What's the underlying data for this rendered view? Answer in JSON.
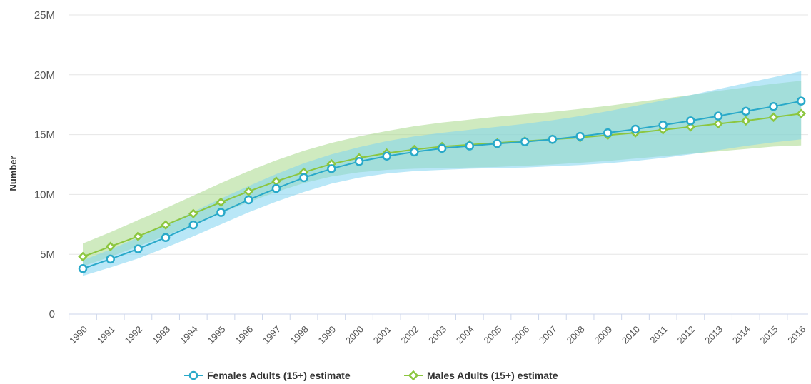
{
  "chart_data": {
    "type": "line",
    "title": "",
    "xlabel": "",
    "ylabel": "Number",
    "ylim": [
      0,
      25000000
    ],
    "y_ticks": [
      0,
      5000000,
      10000000,
      15000000,
      20000000,
      25000000
    ],
    "y_tick_labels": [
      "0",
      "5M",
      "10M",
      "15M",
      "20M",
      "25M"
    ],
    "grid": true,
    "legend_position": "bottom-center",
    "categories": [
      "1990",
      "1991",
      "1992",
      "1993",
      "1994",
      "1995",
      "1996",
      "1997",
      "1998",
      "1999",
      "2000",
      "2001",
      "2002",
      "2003",
      "2004",
      "2005",
      "2006",
      "2007",
      "2008",
      "2009",
      "2010",
      "2011",
      "2012",
      "2013",
      "2014",
      "2015",
      "2016"
    ],
    "series": [
      {
        "name": "Females Adults (15+) estimate",
        "color": "#29a9c9",
        "marker": "circle",
        "band_color": "#7fd3f0",
        "values": [
          3800000,
          4600000,
          5450000,
          6400000,
          7450000,
          8500000,
          9550000,
          10500000,
          11400000,
          12150000,
          12750000,
          13200000,
          13550000,
          13850000,
          14050000,
          14250000,
          14400000,
          14600000,
          14850000,
          15150000,
          15450000,
          15800000,
          16150000,
          16550000,
          16950000,
          17350000,
          17800000
        ],
        "lower": [
          3200000,
          3900000,
          4650000,
          5550000,
          6500000,
          7500000,
          8500000,
          9400000,
          10200000,
          10900000,
          11400000,
          11750000,
          11950000,
          12050000,
          12150000,
          12200000,
          12250000,
          12350000,
          12450000,
          12600000,
          12800000,
          13050000,
          13350000,
          13700000,
          14050000,
          14350000,
          14600000
        ],
        "upper": [
          4500000,
          5400000,
          6400000,
          7450000,
          8550000,
          9650000,
          10700000,
          11700000,
          12600000,
          13350000,
          13950000,
          14450000,
          14850000,
          15150000,
          15400000,
          15650000,
          15900000,
          16200000,
          16550000,
          16950000,
          17400000,
          17850000,
          18300000,
          18800000,
          19300000,
          19800000,
          20300000
        ]
      },
      {
        "name": "Males Adults (15+) estimate",
        "color": "#8cc63f",
        "marker": "diamond",
        "band_color": "#a8d88a",
        "values": [
          4800000,
          5650000,
          6500000,
          7450000,
          8400000,
          9350000,
          10250000,
          11100000,
          11850000,
          12550000,
          13050000,
          13450000,
          13750000,
          14000000,
          14150000,
          14300000,
          14450000,
          14600000,
          14750000,
          14950000,
          15150000,
          15400000,
          15650000,
          15900000,
          16150000,
          16450000,
          16750000
        ],
        "lower": [
          4000000,
          4800000,
          5650000,
          6550000,
          7500000,
          8450000,
          9350000,
          10200000,
          10950000,
          11500000,
          11850000,
          12050000,
          12150000,
          12200000,
          12250000,
          12300000,
          12400000,
          12500000,
          12650000,
          12800000,
          13000000,
          13200000,
          13400000,
          13600000,
          13800000,
          14000000,
          14100000
        ],
        "upper": [
          5900000,
          6850000,
          7850000,
          8850000,
          9900000,
          10950000,
          11950000,
          12850000,
          13650000,
          14300000,
          14850000,
          15300000,
          15700000,
          16000000,
          16250000,
          16500000,
          16700000,
          16900000,
          17150000,
          17400000,
          17700000,
          18000000,
          18300000,
          18650000,
          18950000,
          19250000,
          19500000
        ]
      }
    ]
  }
}
